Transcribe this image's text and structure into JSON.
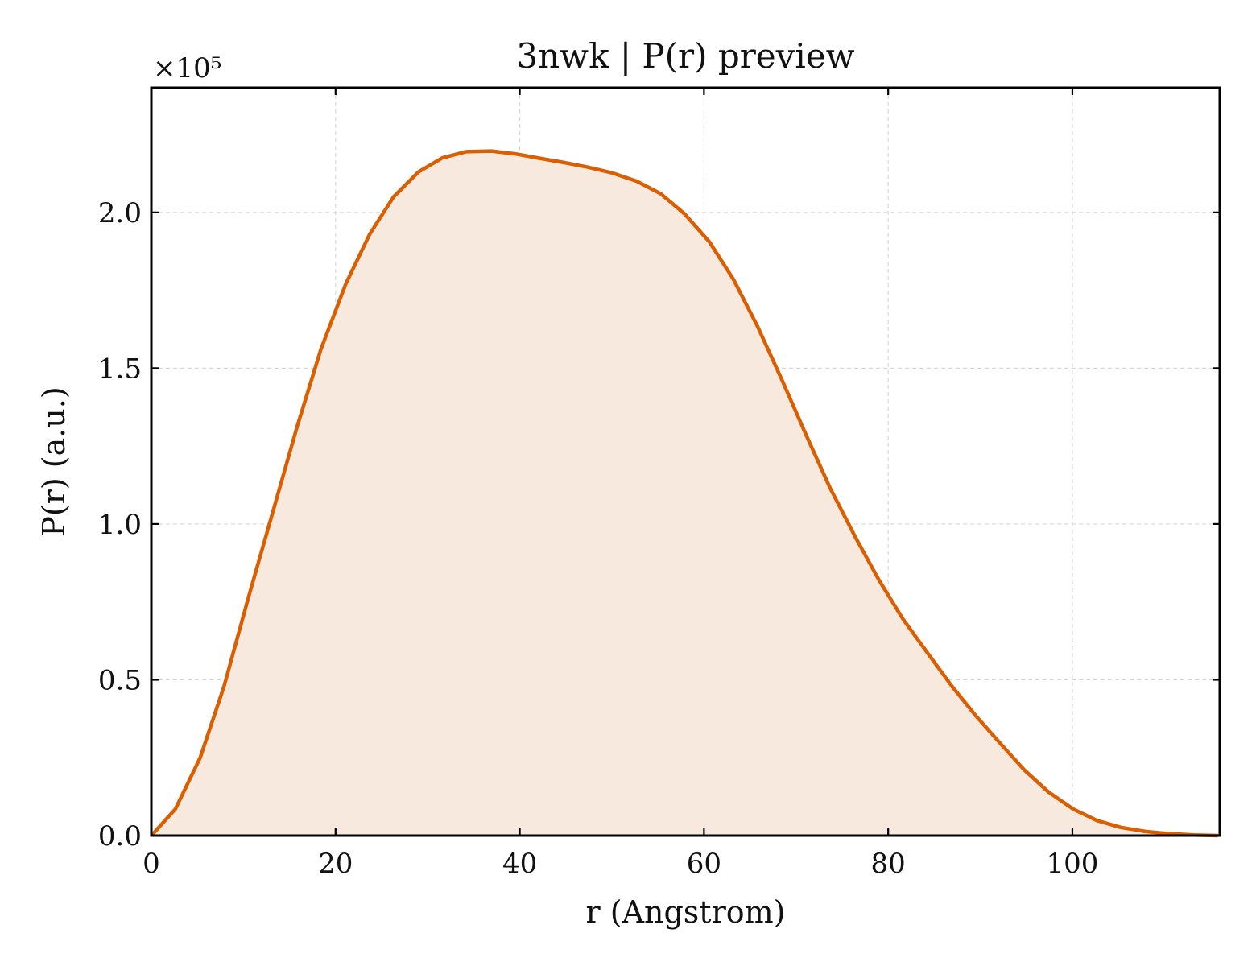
{
  "chart_data": {
    "type": "area",
    "title": "3nwk | P(r) preview",
    "xlabel": "r (Angstrom)",
    "ylabel": "P(r) (a.u.)",
    "y_offset_label": "×10⁵",
    "y_scale": 100000,
    "xlim": [
      0,
      116
    ],
    "ylim": [
      0,
      2.4
    ],
    "xticks": [
      0,
      20,
      40,
      60,
      80,
      100
    ],
    "yticks": [
      0.0,
      0.5,
      1.0,
      1.5,
      2.0
    ],
    "xtick_labels": [
      "0",
      "20",
      "40",
      "60",
      "80",
      "100"
    ],
    "ytick_labels": [
      "0.0",
      "0.5",
      "1.0",
      "1.5",
      "2.0"
    ],
    "grid": true,
    "colors": {
      "line": "#d95f02",
      "fill": "#f8e9de"
    },
    "series": [
      {
        "x": [
          0,
          2.6,
          5.3,
          7.9,
          10.5,
          13.2,
          15.8,
          18.4,
          21.1,
          23.7,
          26.3,
          29.0,
          31.6,
          34.2,
          36.9,
          39.5,
          42.1,
          44.8,
          47.4,
          50.0,
          52.7,
          55.3,
          57.9,
          60.6,
          63.2,
          65.8,
          68.5,
          71.1,
          73.7,
          76.4,
          79.0,
          81.6,
          84.3,
          86.9,
          89.5,
          92.2,
          94.8,
          97.4,
          100.1,
          102.7,
          105.3,
          108.0,
          110.6,
          113.2,
          115.8
        ],
        "values": [
          0.0,
          0.085,
          0.25,
          0.48,
          0.76,
          1.04,
          1.31,
          1.56,
          1.77,
          1.93,
          2.05,
          2.13,
          2.175,
          2.195,
          2.197,
          2.188,
          2.174,
          2.16,
          2.145,
          2.127,
          2.1,
          2.06,
          1.995,
          1.905,
          1.785,
          1.635,
          1.46,
          1.285,
          1.115,
          0.96,
          0.82,
          0.695,
          0.585,
          0.48,
          0.385,
          0.295,
          0.21,
          0.14,
          0.085,
          0.048,
          0.026,
          0.013,
          0.006,
          0.002,
          0.0
        ]
      }
    ]
  }
}
